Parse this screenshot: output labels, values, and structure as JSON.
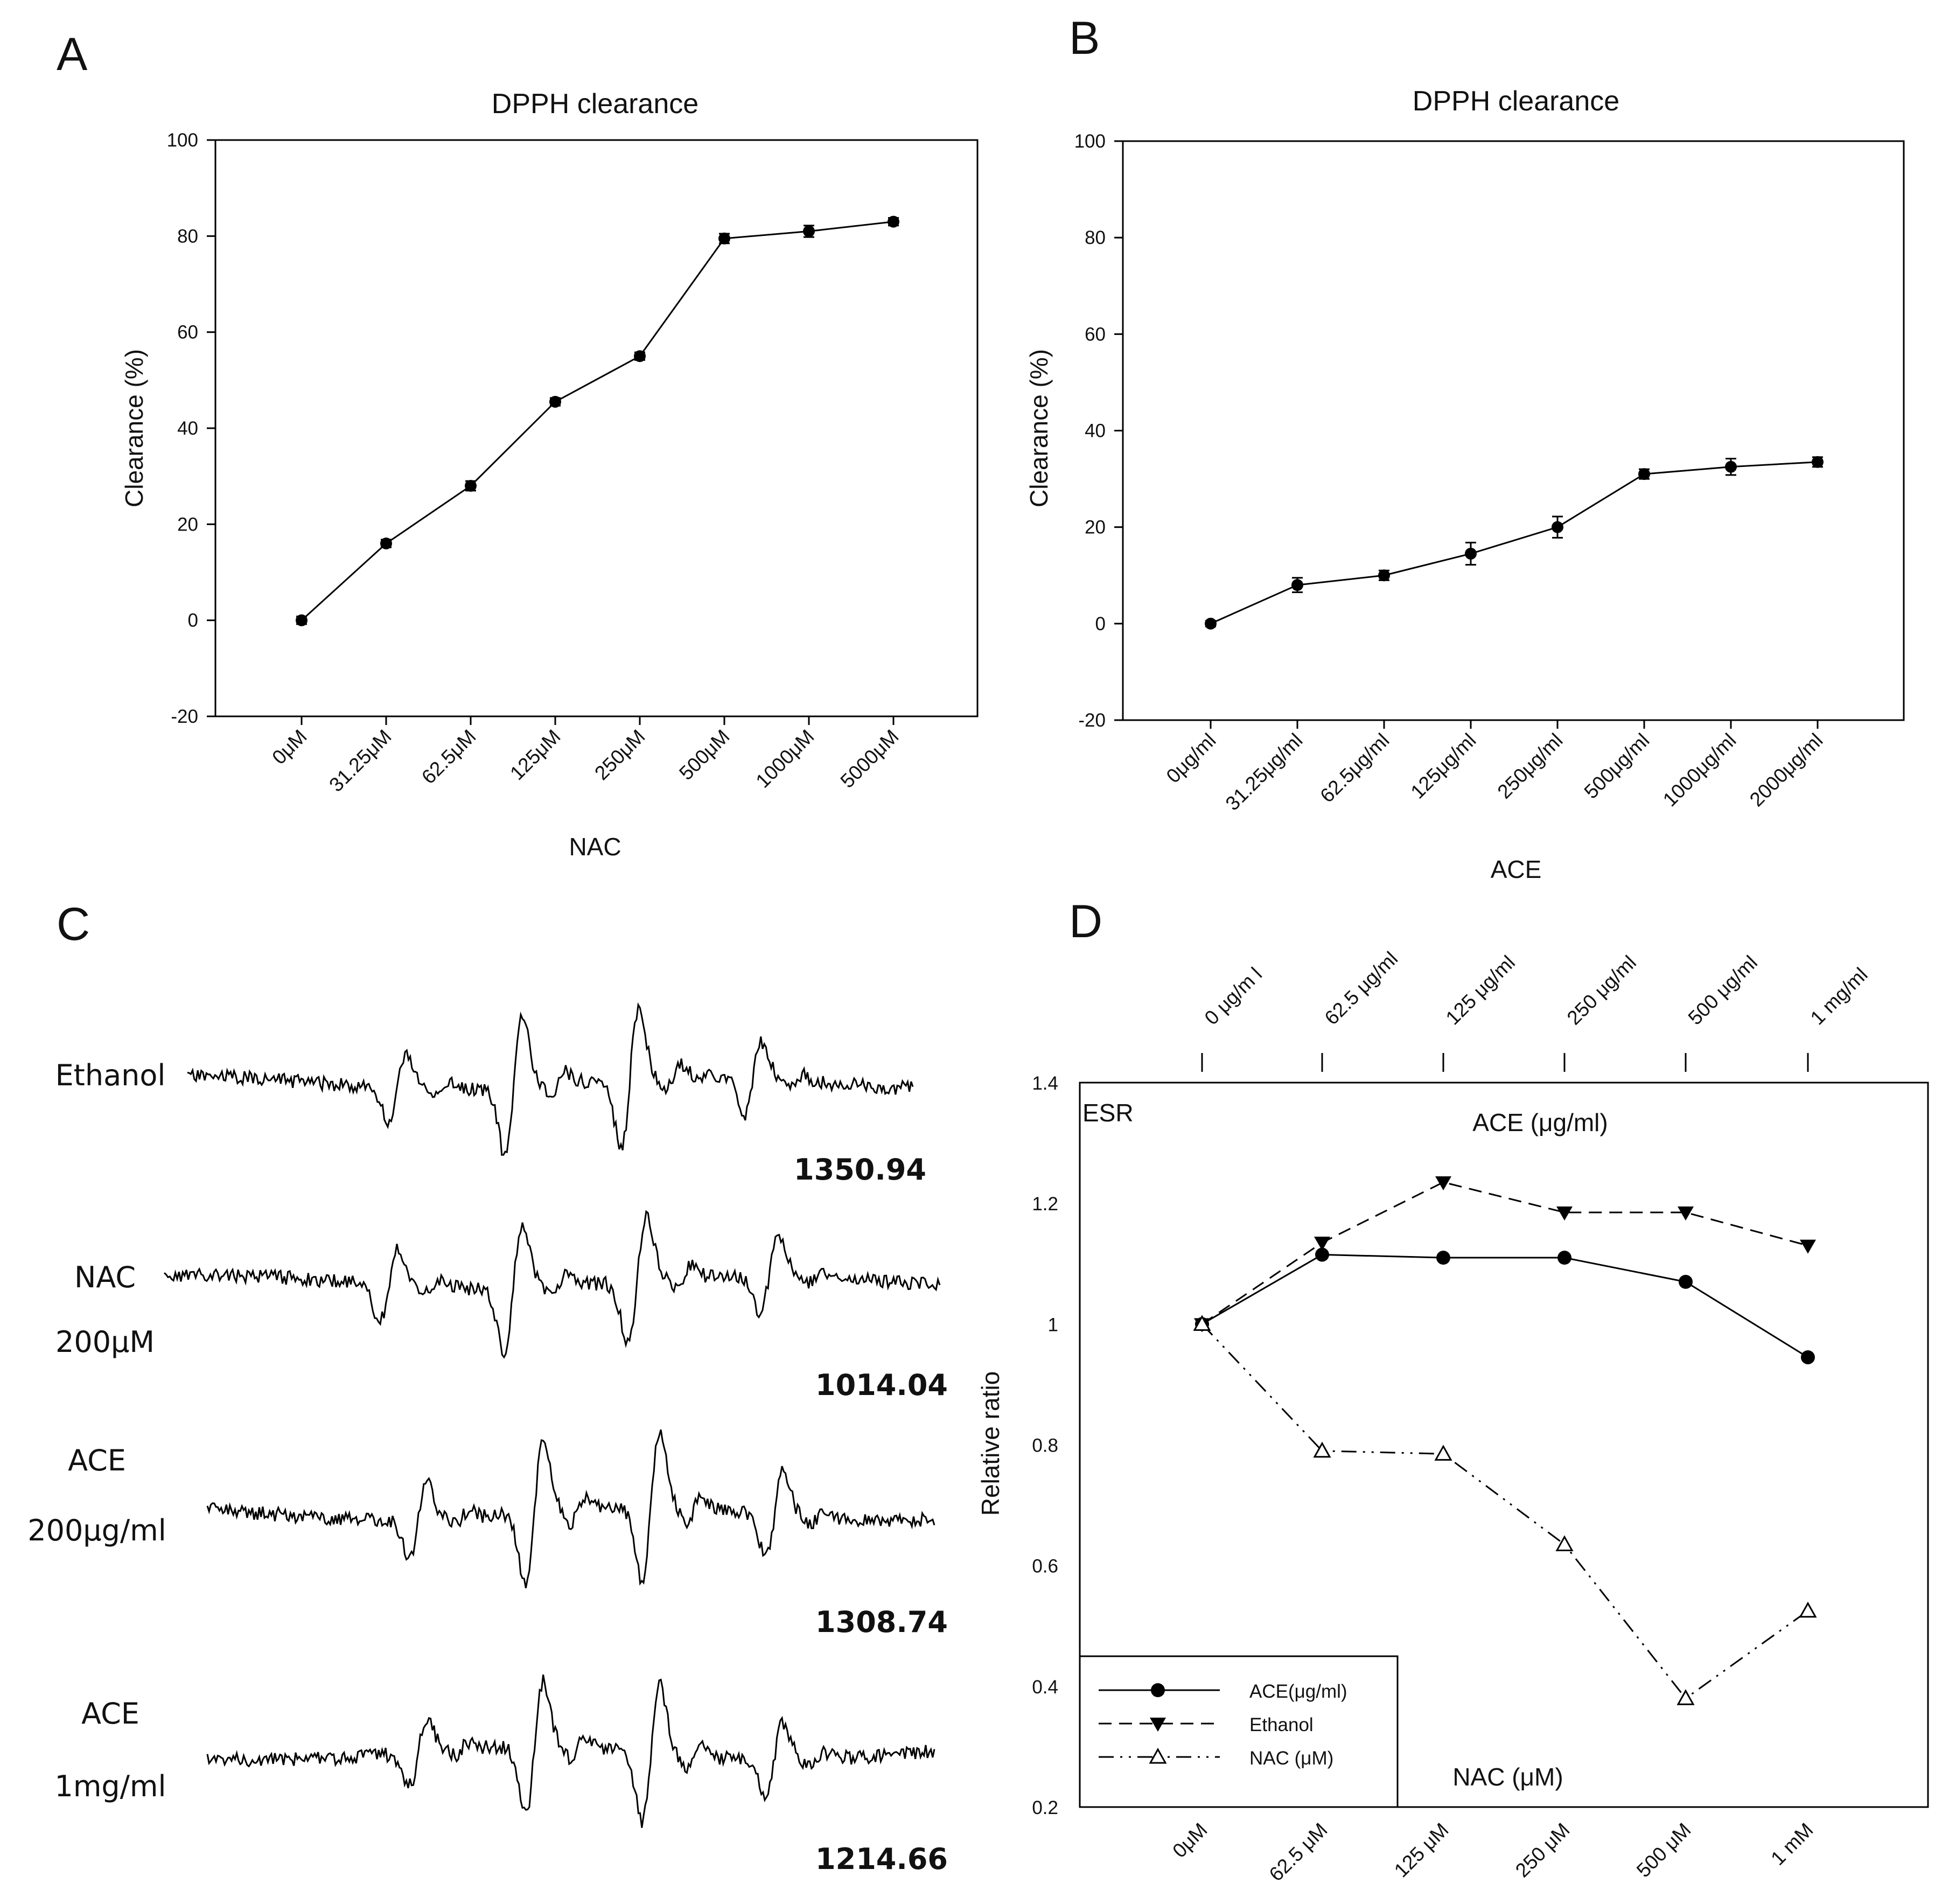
{
  "chart_data": [
    {
      "panel": "A",
      "type": "line",
      "title": "DPPH clearance",
      "xlabel": "NAC",
      "ylabel": "Clearance (%)",
      "categories": [
        "0μM",
        "31.25μM",
        "62.5μM",
        "125μM",
        "250μM",
        "500μM",
        "1000μM",
        "5000μM"
      ],
      "values": [
        0,
        16,
        28,
        45.5,
        55,
        79.5,
        81,
        83
      ],
      "errors": [
        0.8,
        0.8,
        1.0,
        0.8,
        0.8,
        1.0,
        1.2,
        0.8
      ],
      "ylim": [
        -20,
        100
      ],
      "yticks": [
        -20,
        0,
        20,
        40,
        60,
        80,
        100
      ],
      "marker": "filled-circle",
      "grid": false
    },
    {
      "panel": "B",
      "type": "line",
      "title": "DPPH clearance",
      "xlabel": "ACE",
      "ylabel": "Clearance (%)",
      "categories": [
        "0μg/ml",
        "31.25μg/ml",
        "62.5μg/ml",
        "125μg/ml",
        "250μg/ml",
        "500μg/ml",
        "1000μg/ml",
        "2000μg/ml"
      ],
      "values": [
        0,
        8,
        10,
        14.5,
        20,
        31,
        32.5,
        33.5
      ],
      "errors": [
        0.6,
        1.5,
        1.0,
        2.3,
        2.2,
        1.0,
        1.7,
        1.0
      ],
      "ylim": [
        -20,
        100
      ],
      "yticks": [
        -20,
        0,
        20,
        40,
        60,
        80,
        100
      ],
      "marker": "filled-circle",
      "grid": false
    },
    {
      "panel": "C",
      "type": "other",
      "description_free": true,
      "traces": [
        {
          "label_lines": [
            "Ethanol"
          ],
          "value": "1350.94",
          "noise": 13,
          "peaks": [
            0.5,
            0.95,
            0.95,
            0.5
          ],
          "seed": 11
        },
        {
          "label_lines": [
            "NAC",
            "200μM"
          ],
          "value": "1014.04",
          "noise": 13,
          "peaks": [
            0.5,
            0.85,
            0.85,
            0.5
          ],
          "seed": 23
        },
        {
          "label_lines": [
            "ACE",
            "200μg/ml"
          ],
          "value": "1308.74",
          "noise": 13,
          "peaks": [
            0.5,
            1.0,
            1.0,
            0.6
          ],
          "seed": 37
        },
        {
          "label_lines": [
            "ACE",
            "1mg/ml"
          ],
          "value": "1214.66",
          "noise": 13,
          "peaks": [
            0.45,
            0.9,
            0.95,
            0.5
          ],
          "seed": 51
        }
      ]
    },
    {
      "panel": "D",
      "type": "line",
      "ylabel": "Relative ratio",
      "ylim": [
        0.2,
        1.4
      ],
      "yticks": [
        0.2,
        0.4,
        0.6,
        0.8,
        1.0,
        1.2,
        1.4
      ],
      "annotation": "ESR",
      "top_axis_title": "ACE (μg/ml)",
      "bottom_axis_title": "NAC (μM)",
      "top_categories": [
        "0 μg/m l",
        "62.5 μg/ml",
        "125 μg/ml",
        "250 μg/ml",
        "500 μg/ml",
        "1 mg/ml"
      ],
      "bottom_categories": [
        "0μM",
        "62.5 μM",
        "125 μM",
        "250 μM",
        "500 μM",
        "1 mM"
      ],
      "legend_position": "bottom-left",
      "grid": false,
      "series": [
        {
          "name": "ACE(μg/ml)",
          "values": [
            1.0,
            1.115,
            1.11,
            1.11,
            1.07,
            0.945
          ],
          "style": "solid",
          "marker": "filled-circle"
        },
        {
          "name": "Ethanol",
          "values": [
            1.0,
            1.135,
            1.235,
            1.185,
            1.185,
            1.13
          ],
          "style": "dashed",
          "marker": "filled-triangle-down"
        },
        {
          "name": "NAC (μM)",
          "values": [
            1.0,
            0.79,
            0.785,
            0.635,
            0.38,
            0.525
          ],
          "style": "dash-dot-dot",
          "marker": "open-triangle-up"
        }
      ]
    }
  ],
  "panels": {
    "a": {
      "letter": "A"
    },
    "b": {
      "letter": "B"
    },
    "c": {
      "letter": "C"
    },
    "d": {
      "letter": "D"
    }
  }
}
